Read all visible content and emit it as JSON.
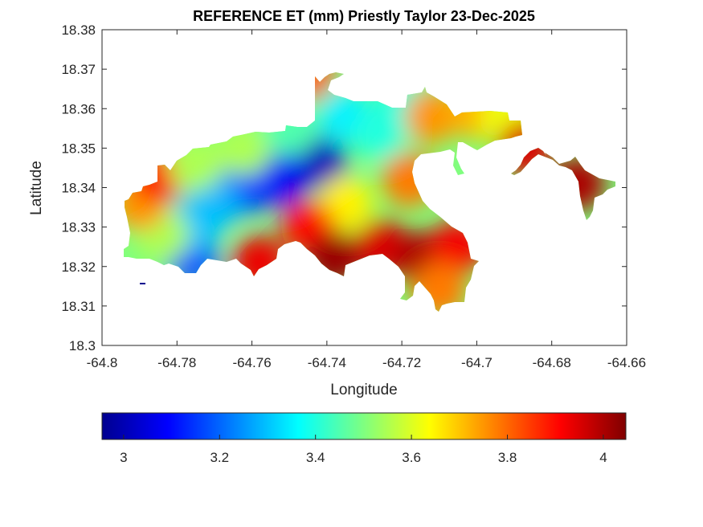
{
  "chart_data": {
    "type": "heatmap",
    "title": "REFERENCE ET (mm) Priestly Taylor 23-Dec-2025",
    "xlabel": "Longitude",
    "ylabel": "Latitude",
    "xlim": [
      -64.8,
      -64.66
    ],
    "ylim": [
      18.3,
      18.38
    ],
    "xticks": [
      -64.8,
      -64.78,
      -64.76,
      -64.74,
      -64.72,
      -64.7,
      -64.68,
      -64.66
    ],
    "xtick_labels": [
      "-64.8",
      "-64.78",
      "-64.76",
      "-64.74",
      "-64.72",
      "-64.7",
      "-64.68",
      "-64.66"
    ],
    "yticks": [
      18.3,
      18.31,
      18.32,
      18.33,
      18.34,
      18.35,
      18.36,
      18.37,
      18.38
    ],
    "ytick_labels": [
      "18.3",
      "18.31",
      "18.32",
      "18.33",
      "18.34",
      "18.35",
      "18.36",
      "18.37",
      "18.38"
    ],
    "grid": false,
    "colormap": "jet",
    "colorbar": {
      "orientation": "horizontal",
      "location": "bottom",
      "range": [
        2.955,
        4.047
      ],
      "ticks": [
        3,
        3.2,
        3.4,
        3.6,
        3.8,
        4
      ],
      "tick_labels": [
        "3",
        "3.2",
        "3.4",
        "3.6",
        "3.8",
        "4"
      ]
    },
    "field_samples": [
      {
        "lon": -64.742,
        "lat": 18.346,
        "value": 3.02
      },
      {
        "lon": -64.753,
        "lat": 18.342,
        "value": 3.08
      },
      {
        "lon": -64.762,
        "lat": 18.34,
        "value": 3.15
      },
      {
        "lon": -64.77,
        "lat": 18.336,
        "value": 3.28
      },
      {
        "lon": -64.776,
        "lat": 18.322,
        "value": 3.18
      },
      {
        "lon": -64.775,
        "lat": 18.331,
        "value": 3.3
      },
      {
        "lon": -64.784,
        "lat": 18.328,
        "value": 3.55
      },
      {
        "lon": -64.79,
        "lat": 18.336,
        "value": 3.75
      },
      {
        "lon": -64.785,
        "lat": 18.343,
        "value": 3.9
      },
      {
        "lon": -64.775,
        "lat": 18.346,
        "value": 3.55
      },
      {
        "lon": -64.762,
        "lat": 18.35,
        "value": 3.55
      },
      {
        "lon": -64.75,
        "lat": 18.355,
        "value": 3.45
      },
      {
        "lon": -64.735,
        "lat": 18.358,
        "value": 3.35
      },
      {
        "lon": -64.726,
        "lat": 18.354,
        "value": 3.4
      },
      {
        "lon": -64.72,
        "lat": 18.361,
        "value": 3.4
      },
      {
        "lon": -64.745,
        "lat": 18.369,
        "value": 3.8
      },
      {
        "lon": -64.712,
        "lat": 18.358,
        "value": 3.75
      },
      {
        "lon": -64.7,
        "lat": 18.359,
        "value": 3.72
      },
      {
        "lon": -64.692,
        "lat": 18.358,
        "value": 3.62
      },
      {
        "lon": -64.718,
        "lat": 18.342,
        "value": 3.78
      },
      {
        "lon": -64.735,
        "lat": 18.336,
        "value": 3.65
      },
      {
        "lon": -64.745,
        "lat": 18.33,
        "value": 3.9
      },
      {
        "lon": -64.738,
        "lat": 18.322,
        "value": 4.02
      },
      {
        "lon": -64.725,
        "lat": 18.325,
        "value": 3.95
      },
      {
        "lon": -64.715,
        "lat": 18.322,
        "value": 4.0
      },
      {
        "lon": -64.705,
        "lat": 18.325,
        "value": 3.92
      },
      {
        "lon": -64.71,
        "lat": 18.314,
        "value": 3.78
      },
      {
        "lon": -64.758,
        "lat": 18.321,
        "value": 3.93
      },
      {
        "lon": -64.673,
        "lat": 18.341,
        "value": 4.0
      },
      {
        "lon": -64.687,
        "lat": 18.35,
        "value": 3.95
      }
    ]
  }
}
